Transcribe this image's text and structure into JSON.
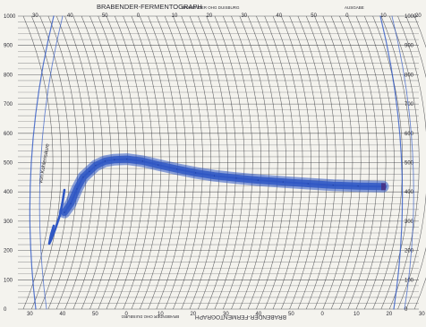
{
  "header": {
    "title": "BRABENDER-FERMENTOGRAPH",
    "small_text": "BRABENDER OHG DUISBURG",
    "right_text": "AUSGABE"
  },
  "footer": {
    "title": "BRABENDER-FERMENTOGRAPH",
    "small_text": "BRABENDER OHG DUISBURG"
  },
  "curve_note": "von Kohlensäure",
  "chart_data": {
    "type": "line",
    "title": "",
    "xlabel": "",
    "ylabel": "",
    "y_ticks_left": [
      "1000",
      "900",
      "800",
      "700",
      "600",
      "500",
      "400",
      "300",
      "200",
      "100",
      "0"
    ],
    "y_ticks_right": [
      "1000",
      "900",
      "800",
      "700",
      "600",
      "500",
      "400",
      "300",
      "200",
      "100",
      "0"
    ],
    "top_ticks": [
      "30",
      "40",
      "50",
      "0",
      "10",
      "20",
      "30",
      "40",
      "50",
      "0",
      "10",
      "20"
    ],
    "bottom_ticks": [
      "30",
      "40",
      "50",
      "0",
      "10",
      "20",
      "30",
      "40",
      "50",
      "0",
      "10",
      "20",
      "30"
    ],
    "ylim": [
      0,
      1000
    ],
    "series": [
      {
        "x": [
          0,
          2,
          4,
          6,
          8,
          10,
          13,
          16,
          20,
          25,
          30,
          36,
          42,
          48,
          55,
          62,
          70,
          78,
          86,
          94,
          102
        ],
        "y": [
          330,
          360,
          410,
          450,
          470,
          490,
          505,
          510,
          512,
          505,
          492,
          478,
          465,
          455,
          447,
          440,
          434,
          428,
          423,
          420,
          418
        ]
      }
    ]
  },
  "colors": {
    "ink": "#2f57c4",
    "grid": "#2f3036",
    "paper": "#f4f3ee"
  }
}
